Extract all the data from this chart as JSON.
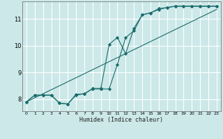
{
  "title": "",
  "xlabel": "Humidex (Indice chaleur)",
  "bg_color": "#cce8e8",
  "grid_color": "#ffffff",
  "line_color": "#1a6b6b",
  "xlim": [
    -0.5,
    23.5
  ],
  "ylim": [
    7.55,
    11.65
  ],
  "yticks": [
    8,
    9,
    10,
    11
  ],
  "xticks": [
    0,
    1,
    2,
    3,
    4,
    5,
    6,
    7,
    8,
    9,
    10,
    11,
    12,
    13,
    14,
    15,
    16,
    17,
    18,
    19,
    20,
    21,
    22,
    23
  ],
  "line1_x": [
    0,
    1,
    2,
    3,
    4,
    5,
    6,
    7,
    8,
    9,
    10,
    11,
    12,
    13,
    14,
    15,
    16,
    17,
    18,
    19,
    20,
    21,
    22,
    23
  ],
  "line1_y": [
    7.9,
    8.15,
    8.15,
    8.15,
    7.85,
    7.82,
    8.15,
    8.2,
    8.38,
    8.38,
    8.38,
    9.3,
    10.3,
    10.55,
    11.15,
    11.22,
    11.35,
    11.42,
    11.47,
    11.47,
    11.47,
    11.47,
    11.47,
    11.47
  ],
  "line2_x": [
    0,
    1,
    2,
    3,
    4,
    5,
    6,
    7,
    8,
    9,
    10,
    11,
    12,
    13,
    14,
    15,
    16,
    17,
    18,
    19,
    20,
    21,
    22,
    23
  ],
  "line2_y": [
    7.9,
    8.15,
    8.15,
    8.15,
    7.85,
    7.82,
    8.18,
    8.2,
    8.4,
    8.4,
    10.05,
    10.3,
    9.7,
    10.65,
    11.15,
    11.22,
    11.38,
    11.42,
    11.47,
    11.47,
    11.47,
    11.47,
    11.47,
    11.47
  ],
  "line3_x": [
    0,
    23
  ],
  "line3_y": [
    7.9,
    11.35
  ]
}
